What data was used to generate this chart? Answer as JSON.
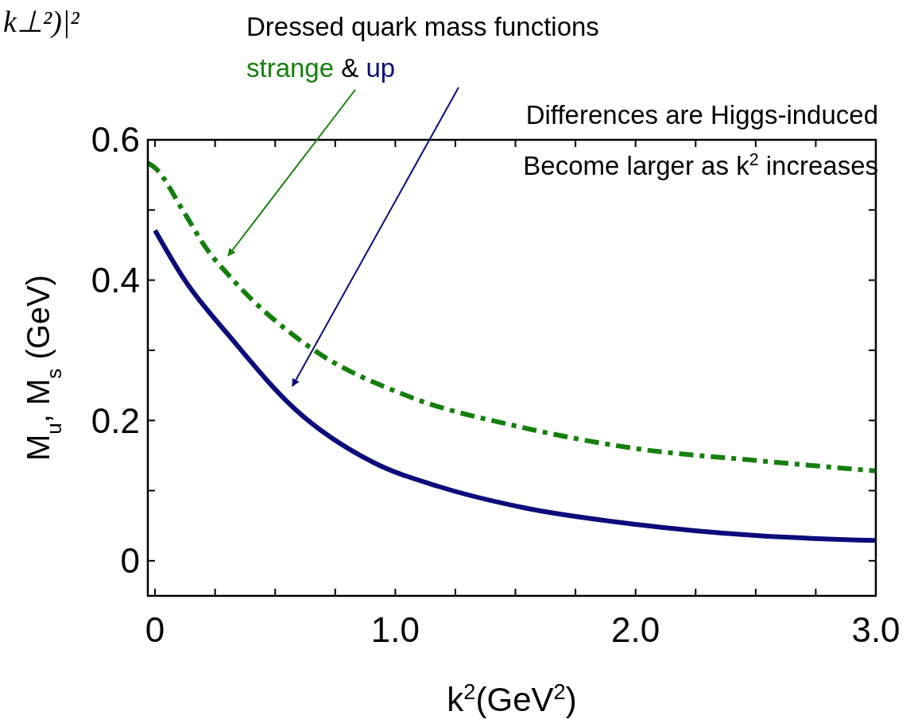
{
  "chart_data": {
    "type": "line",
    "xlabel": "k$^{2}$(GeV$^{2}$)",
    "ylabel": "M$_{u}$, M$_{s}$ (GeV)",
    "annotations": [
      "k⊥²)|²",
      "Dressed quark mass functions",
      "&",
      "Differences are Higgs-induced",
      "Become larger as k$^{2}$ increases"
    ],
    "xlim": [
      -0.03,
      3.0
    ],
    "ylim": [
      -0.05,
      0.6
    ],
    "xticks": [
      0,
      {
        "value": 0.25,
        "label": null
      },
      {
        "value": 0.5,
        "label": null
      },
      {
        "value": 0.75,
        "label": null
      },
      {
        "value": 1,
        "label": "1.0"
      },
      {
        "value": 1.25,
        "label": null
      },
      {
        "value": 1.5,
        "label": null
      },
      {
        "value": 1.75,
        "label": null
      },
      {
        "value": 2,
        "label": "2.0"
      },
      {
        "value": 2.25,
        "label": null
      },
      {
        "value": 2.5,
        "label": null
      },
      {
        "value": 2.75,
        "label": null
      },
      {
        "value": 3,
        "label": "3.0"
      }
    ],
    "yticks": [
      0,
      {
        "value": 0.1,
        "label": null
      },
      {
        "value": 0.2,
        "label": "0.2"
      },
      {
        "value": 0.3,
        "label": null
      },
      {
        "value": 0.4,
        "label": "0.4"
      },
      {
        "value": 0.5,
        "label": null
      },
      {
        "value": 0.6,
        "label": "0.6"
      }
    ],
    "grid": false,
    "series": [
      {
        "name": "strange",
        "color": "#157f0d",
        "line_style": "dashed",
        "x": [
          -0.03,
          0,
          0.12,
          0.21,
          0.32,
          0.65,
          1.05,
          1.53,
          2.0,
          2.5,
          3.0
        ],
        "values": [
          0.567,
          0.56,
          0.497,
          0.447,
          0.402,
          0.303,
          0.235,
          0.19,
          0.16,
          0.143,
          0.128
        ]
      },
      {
        "name": "up",
        "color": "#0c0c7c",
        "line_style": "solid",
        "x": [
          0,
          0.12,
          0.32,
          0.58,
          0.91,
          1.18,
          1.53,
          2.0,
          2.5,
          3.0
        ],
        "values": [
          0.471,
          0.402,
          0.316,
          0.217,
          0.14,
          0.106,
          0.076,
          0.052,
          0.036,
          0.029
        ]
      }
    ]
  }
}
